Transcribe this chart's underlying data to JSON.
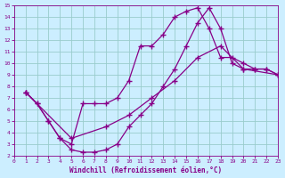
{
  "xlabel": "Windchill (Refroidissement éolien,°C)",
  "xlim": [
    0,
    23
  ],
  "ylim": [
    2,
    15
  ],
  "xticks": [
    0,
    1,
    2,
    3,
    4,
    5,
    6,
    7,
    8,
    9,
    10,
    11,
    12,
    13,
    14,
    15,
    16,
    17,
    18,
    19,
    20,
    21,
    22,
    23
  ],
  "yticks": [
    2,
    3,
    4,
    5,
    6,
    7,
    8,
    9,
    10,
    11,
    12,
    13,
    14,
    15
  ],
  "bg_color": "#cceeff",
  "line_color": "#880088",
  "grid_color": "#99cccc",
  "lines": [
    {
      "x": [
        1,
        2,
        3,
        4,
        5,
        6,
        7,
        8,
        9,
        10,
        11,
        12,
        13,
        14,
        15,
        16,
        17,
        18,
        19,
        20,
        21,
        22,
        23
      ],
      "y": [
        7.5,
        6.5,
        5.0,
        3.5,
        3.0,
        6.5,
        6.5,
        6.5,
        7.0,
        8.5,
        11.5,
        11.5,
        12.5,
        14.0,
        14.5,
        14.8,
        13.0,
        10.5,
        10.5,
        10.0,
        9.5,
        9.5,
        9.0
      ]
    },
    {
      "x": [
        1,
        2,
        3,
        4,
        5,
        6,
        7,
        8,
        9,
        10,
        11,
        12,
        13,
        14,
        15,
        16,
        17,
        18,
        19,
        20,
        21,
        22,
        23
      ],
      "y": [
        7.5,
        6.5,
        5.0,
        3.5,
        2.5,
        2.3,
        2.3,
        2.5,
        3.0,
        4.5,
        5.5,
        6.5,
        8.0,
        9.5,
        11.5,
        13.5,
        14.8,
        13.0,
        10.0,
        9.5,
        9.5,
        9.5,
        9.0
      ]
    },
    {
      "x": [
        1,
        5,
        8,
        10,
        12,
        14,
        16,
        18,
        20,
        23
      ],
      "y": [
        7.5,
        3.5,
        4.5,
        5.5,
        7.0,
        8.5,
        10.5,
        11.5,
        9.5,
        9.0
      ]
    }
  ]
}
